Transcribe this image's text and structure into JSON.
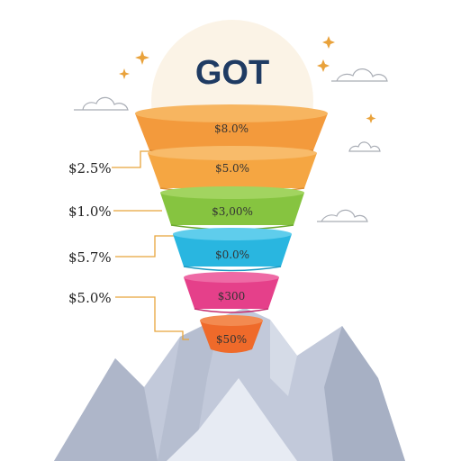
{
  "title": "GOT",
  "funnel": [
    {
      "value": "$8.0%",
      "color": "#f39a3c"
    },
    {
      "value": "$5.0%",
      "color": "#f5a642"
    },
    {
      "value": "$3,00%",
      "color": "#86c440"
    },
    {
      "value": "$0.0%",
      "color": "#29b6e0"
    },
    {
      "value": "$300",
      "color": "#e5408a"
    },
    {
      "value": "$50%",
      "color": "#ef6a2a"
    }
  ],
  "side_labels": [
    "$2.5%",
    "$1.0%",
    "$5.7%",
    "$5.0%"
  ],
  "colors": {
    "title": "#1f3b63",
    "glow": "#fbf3e6",
    "mountain": "#c2c9da",
    "leader": "#e8a53b"
  }
}
